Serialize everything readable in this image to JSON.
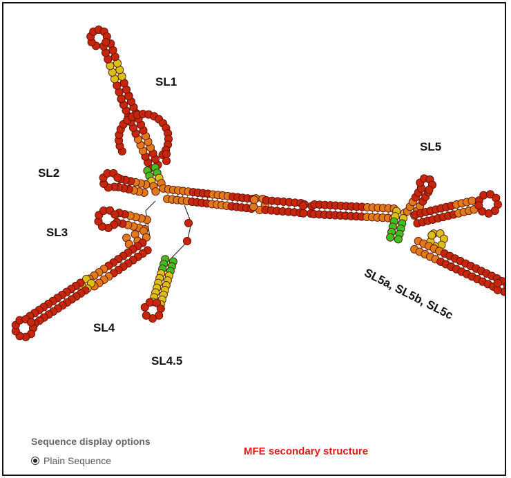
{
  "labels": {
    "sl1": "SL1",
    "sl2": "SL2",
    "sl3": "SL3",
    "sl4": "SL4",
    "sl45": "SL4.5",
    "sl5": "SL5",
    "sl5abc": "SL5a, SL5b, SL5c"
  },
  "options": {
    "title": "Sequence display options",
    "plain_sequence": "Plain Sequence",
    "plain_selected": true
  },
  "structure_caption": "MFE secondary structure",
  "colors": {
    "nucleotide_high": "#c8250d",
    "nucleotide_mid": "#e07a1b",
    "nucleotide_low": "#d8c21a",
    "nucleotide_green": "#3fbf22",
    "backbone": "#333333",
    "caption": "#e21a1a"
  }
}
